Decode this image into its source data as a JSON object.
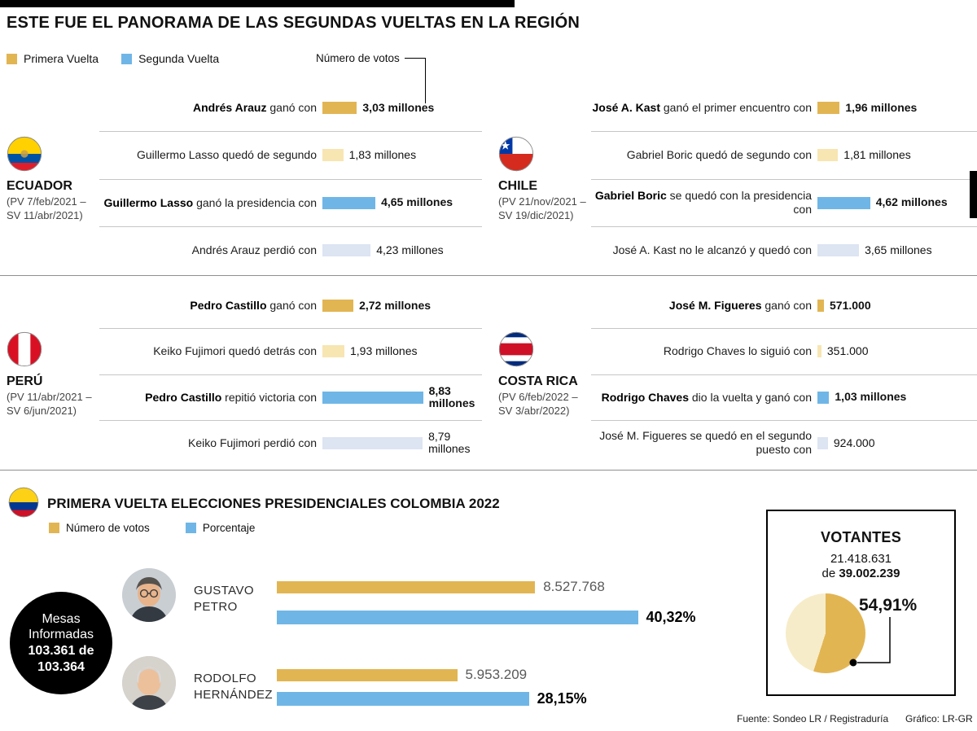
{
  "meta": {
    "title": "ESTE FUE EL PANORAMA DE LAS SEGUNDAS VUELTAS EN LA REGIÓN",
    "legend": {
      "first_round": "Primera Vuelta",
      "second_round": "Segunda Vuelta",
      "votes_note": "Número de votos"
    },
    "footer": {
      "source": "Fuente: Sondeo LR / Registraduría",
      "credit": "Gráfico: LR-GR"
    }
  },
  "colors": {
    "gold": "#e2b553",
    "gold_light": "#f7e5b2",
    "blue": "#6fb6e6",
    "blue_light": "#dde4f2",
    "gold_pale": "#f7ecc9"
  },
  "chart_data": {
    "type": "bar",
    "unit": "votos (millones)",
    "legend_position": "top-left",
    "panels": [
      {
        "country": "ECUADOR",
        "dates": "(PV 7/feb/2021 – SV 11/abr/2021)",
        "flag": "ecuador-flag",
        "rows": [
          {
            "bold": "Andrés Arauz",
            "text": " ganó con",
            "series": "primera-vuelta-ganador",
            "value": 3.03,
            "label": "3,03 millones"
          },
          {
            "bold": "",
            "text": "Guillermo Lasso quedó de segundo",
            "series": "primera-vuelta-segundo",
            "value": 1.83,
            "label": "1,83 millones"
          },
          {
            "bold": "Guillermo Lasso",
            "text": " ganó la presidencia con",
            "series": "segunda-vuelta-ganador",
            "value": 4.65,
            "label": "4,65 millones"
          },
          {
            "bold": "",
            "text": "Andrés Arauz perdió con",
            "series": "segunda-vuelta-perdedor",
            "value": 4.23,
            "label": "4,23 millones"
          }
        ]
      },
      {
        "country": "CHILE",
        "dates": "(PV 21/nov/2021 – SV 19/dic/2021)",
        "flag": "chile-flag",
        "rows": [
          {
            "bold": "José A. Kast",
            "text": " ganó el primer encuentro con",
            "series": "primera-vuelta-ganador",
            "value": 1.96,
            "label": "1,96 millones"
          },
          {
            "bold": "",
            "text": "Gabriel Boric quedó de segundo con",
            "series": "primera-vuelta-segundo",
            "value": 1.81,
            "label": "1,81 millones"
          },
          {
            "bold": "Gabriel Boric",
            "text": " se quedó con la presidencia con",
            "series": "segunda-vuelta-ganador",
            "value": 4.62,
            "label": "4,62 millones"
          },
          {
            "bold": "",
            "text": "José A. Kast no le alcanzó y quedó con",
            "series": "segunda-vuelta-perdedor",
            "value": 3.65,
            "label": "3,65 millones"
          }
        ]
      },
      {
        "country": "PERÚ",
        "dates": "(PV 11/abr/2021 – SV 6/jun/2021)",
        "flag": "peru-flag",
        "rows": [
          {
            "bold": "Pedro Castillo",
            "text": " ganó con",
            "series": "primera-vuelta-ganador",
            "value": 2.72,
            "label": "2,72 millones"
          },
          {
            "bold": "",
            "text": "Keiko Fujimori quedó detrás con",
            "series": "primera-vuelta-segundo",
            "value": 1.93,
            "label": "1,93 millones"
          },
          {
            "bold": "Pedro Castillo",
            "text": " repitió victoria con",
            "series": "segunda-vuelta-ganador",
            "value": 8.83,
            "label": "8,83 millones"
          },
          {
            "bold": "",
            "text": "Keiko Fujimori perdió con",
            "series": "segunda-vuelta-perdedor",
            "value": 8.79,
            "label": "8,79 millones"
          }
        ]
      },
      {
        "country": "COSTA RICA",
        "dates": "(PV 6/feb/2022 – SV 3/abr/2022)",
        "flag": "costa-rica-flag",
        "rows": [
          {
            "bold": "José M. Figueres",
            "text": " ganó con",
            "series": "primera-vuelta-ganador",
            "value": 0.571,
            "label": "571.000"
          },
          {
            "bold": "",
            "text": "Rodrigo Chaves lo siguió con",
            "series": "primera-vuelta-segundo",
            "value": 0.351,
            "label": "351.000"
          },
          {
            "bold": "Rodrigo Chaves",
            "text": " dio la vuelta y ganó con",
            "series": "segunda-vuelta-ganador",
            "value": 1.03,
            "label": "1,03 millones"
          },
          {
            "bold": "",
            "text": "José M. Figueres se quedó en el segundo puesto con",
            "series": "segunda-vuelta-perdedor",
            "value": 0.924,
            "label": "924.000"
          }
        ]
      }
    ],
    "colombia": {
      "title": "PRIMERA VUELTA ELECCIONES PRESIDENCIALES COLOMBIA 2022",
      "legend_votes": "Número de votos",
      "legend_pct": "Porcentaje",
      "mesas_label": "Mesas Informadas",
      "mesas_value": "103.361 de 103.364",
      "candidates": [
        {
          "name": "GUSTAVO PETRO",
          "votes": 8527768,
          "votes_label": "8.527.768",
          "pct": 40.32,
          "pct_label": "40,32%"
        },
        {
          "name": "RODOLFO HERNÁNDEZ",
          "votes": 5953209,
          "votes_label": "5.953.209",
          "pct": 28.15,
          "pct_label": "28,15%"
        }
      ],
      "votantes": {
        "title": "VOTANTES",
        "count": "21.418.631",
        "de": "de",
        "total": "39.002.239",
        "pct": 54.91,
        "pct_label": "54,91%"
      }
    }
  }
}
